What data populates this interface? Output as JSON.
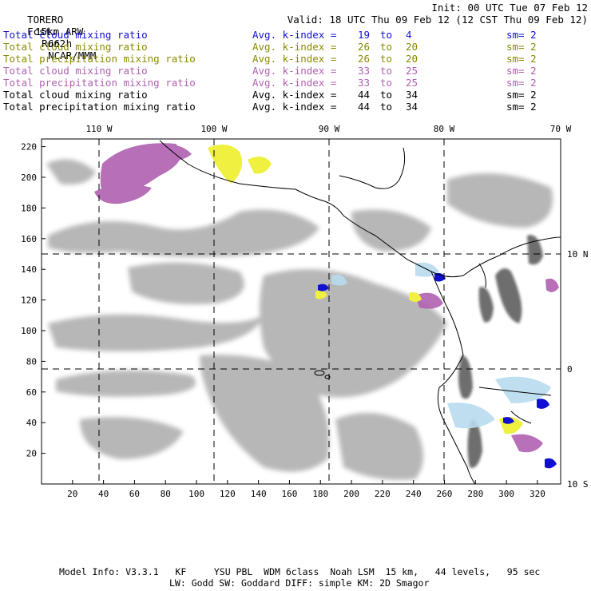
{
  "header": {
    "model": "TORERO",
    "resolution": "15km ARW",
    "run": "Run2",
    "org": "NCAR/MMM",
    "init": "Init: 00 UTC Tue 07 Feb 12",
    "fcst_label": "Fcst:",
    "fcst_value": "66 h",
    "valid": "Valid: 18 UTC Thu 09 Feb 12 (12 CST Thu 09 Feb 12)"
  },
  "fields": [
    {
      "name": "Total cloud mixing ratio",
      "kindex": "Avg. k-index =",
      "from": "19",
      "to_word": "to",
      "to": "4",
      "sm": "sm= 2",
      "color": "#1010d0"
    },
    {
      "name": "Total cloud mixing ratio",
      "kindex": "Avg. k-index =",
      "from": "26",
      "to_word": "to",
      "to": "20",
      "sm": "sm= 2",
      "color": "#8a8a00"
    },
    {
      "name": "Total precipitation mixing ratio",
      "kindex": "Avg. k-index =",
      "from": "26",
      "to_word": "to",
      "to": "20",
      "sm": "sm= 2",
      "color": "#8a8a00"
    },
    {
      "name": "Total cloud mixing ratio",
      "kindex": "Avg. k-index =",
      "from": "33",
      "to_word": "to",
      "to": "25",
      "sm": "sm= 2",
      "color": "#b060b0"
    },
    {
      "name": "Total precipitation mixing ratio",
      "kindex": "Avg. k-index =",
      "from": "33",
      "to_word": "to",
      "to": "25",
      "sm": "sm= 2",
      "color": "#b060b0"
    },
    {
      "name": "Total cloud mixing ratio",
      "kindex": "Avg. k-index =",
      "from": "44",
      "to_word": "to",
      "to": "34",
      "sm": "sm= 2",
      "color": "#000000"
    },
    {
      "name": "Total precipitation mixing ratio",
      "kindex": "Avg. k-index =",
      "from": "44",
      "to_word": "to",
      "to": "34",
      "sm": "sm= 2",
      "color": "#000000"
    }
  ],
  "map": {
    "lon_labels": [
      "110 W",
      "100 W",
      "90 W",
      "80 W",
      "70 W"
    ],
    "lat_labels": [
      "10 N",
      "0",
      "10 S"
    ],
    "x_ticks": [
      "20",
      "40",
      "60",
      "80",
      "100",
      "120",
      "140",
      "160",
      "180",
      "200",
      "220",
      "240",
      "260",
      "280",
      "300",
      "320"
    ],
    "y_ticks": [
      "220",
      "200",
      "180",
      "160",
      "140",
      "120",
      "100",
      "80",
      "60",
      "40",
      "20"
    ],
    "colors": {
      "cloud_gray": "#b4b4b4",
      "dark_gray": "#555555",
      "blue": "#1010d0",
      "light_blue": "#b8dcf0",
      "yellow": "#f0f040",
      "purple": "#b060b0"
    }
  },
  "footer": {
    "line1": "Model Info: V3.3.1   KF     YSU PBL  WDM 6class  Noah LSM  15 km,   44 levels,   95 sec",
    "line2": "LW: Godd SW: Goddard DIFF: simple KM: 2D Smagor"
  }
}
